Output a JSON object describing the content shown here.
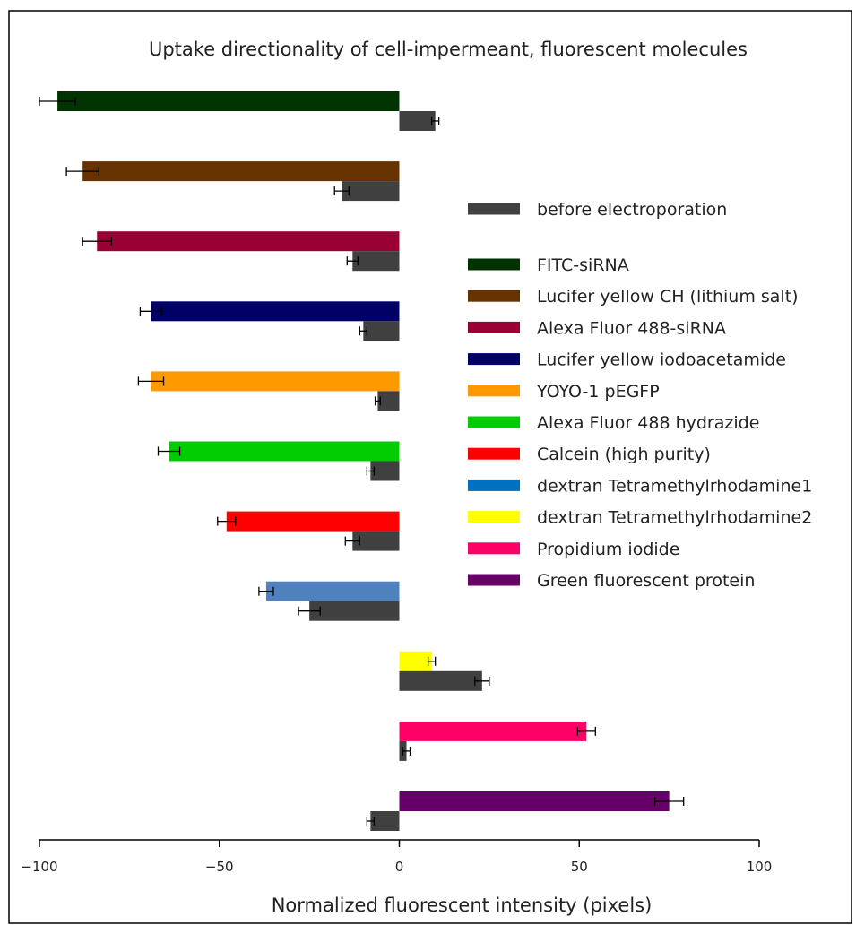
{
  "chart_data": {
    "type": "bar",
    "orientation": "horizontal",
    "title": "Uptake directionality of cell-impermeant, fluorescent molecules",
    "xlabel": "Normalized fluorescent intensity (pixels)",
    "ylabel": "",
    "xlim": [
      -100,
      100
    ],
    "xticks": [
      -100,
      -50,
      0,
      50,
      100
    ],
    "xtick_labels": [
      "−100",
      "−50",
      "0",
      "50",
      "100"
    ],
    "grid": false,
    "legend_position": "right",
    "before_series": {
      "name": "before electroporation",
      "color": "#404040"
    },
    "series": [
      {
        "name": "FITC-siRNA",
        "color": "#003300",
        "value": -95,
        "error": 5,
        "before_value": 10,
        "before_error": 1
      },
      {
        "name": "Lucifer yellow CH (lithium salt)",
        "color": "#663300",
        "value": -88,
        "error": 4.5,
        "before_value": -16,
        "before_error": 2
      },
      {
        "name": "Alexa Fluor 488-siRNA",
        "color": "#990033",
        "value": -84,
        "error": 4,
        "before_value": -13,
        "before_error": 1.5
      },
      {
        "name": "Lucifer yellow iodoacetamide",
        "color": "#000066",
        "value": -69,
        "error": 3,
        "before_value": -10,
        "before_error": 1
      },
      {
        "name": "YOYO-1 pEGFP",
        "color": "#ff9900",
        "value": -69,
        "error": 3.5,
        "before_value": -6,
        "before_error": 0.7
      },
      {
        "name": "Alexa Fluor 488 hydrazide",
        "color": "#00cc00",
        "value": -64,
        "error": 3,
        "before_value": -8,
        "before_error": 1
      },
      {
        "name": "Calcein (high purity)",
        "color": "#ff0000",
        "value": -48,
        "error": 2.5,
        "before_value": -13,
        "before_error": 2
      },
      {
        "name": "dextran Tetramethylrhodamine1",
        "color": "#4f81bd",
        "legend_color": "#0070c0",
        "value": -37,
        "error": 2,
        "before_value": -25,
        "before_error": 3
      },
      {
        "name": "dextran Tetramethylrhodamine2",
        "color": "#ffff00",
        "value": 9,
        "error": 1,
        "before_value": 23,
        "before_error": 2
      },
      {
        "name": "Propidium iodide",
        "color": "#ff0066",
        "value": 52,
        "error": 2.5,
        "before_value": 2,
        "before_error": 1
      },
      {
        "name": "Green fluorescent protein",
        "color": "#660066",
        "value": 75,
        "error": 4,
        "before_value": -8,
        "before_error": 1
      }
    ]
  }
}
